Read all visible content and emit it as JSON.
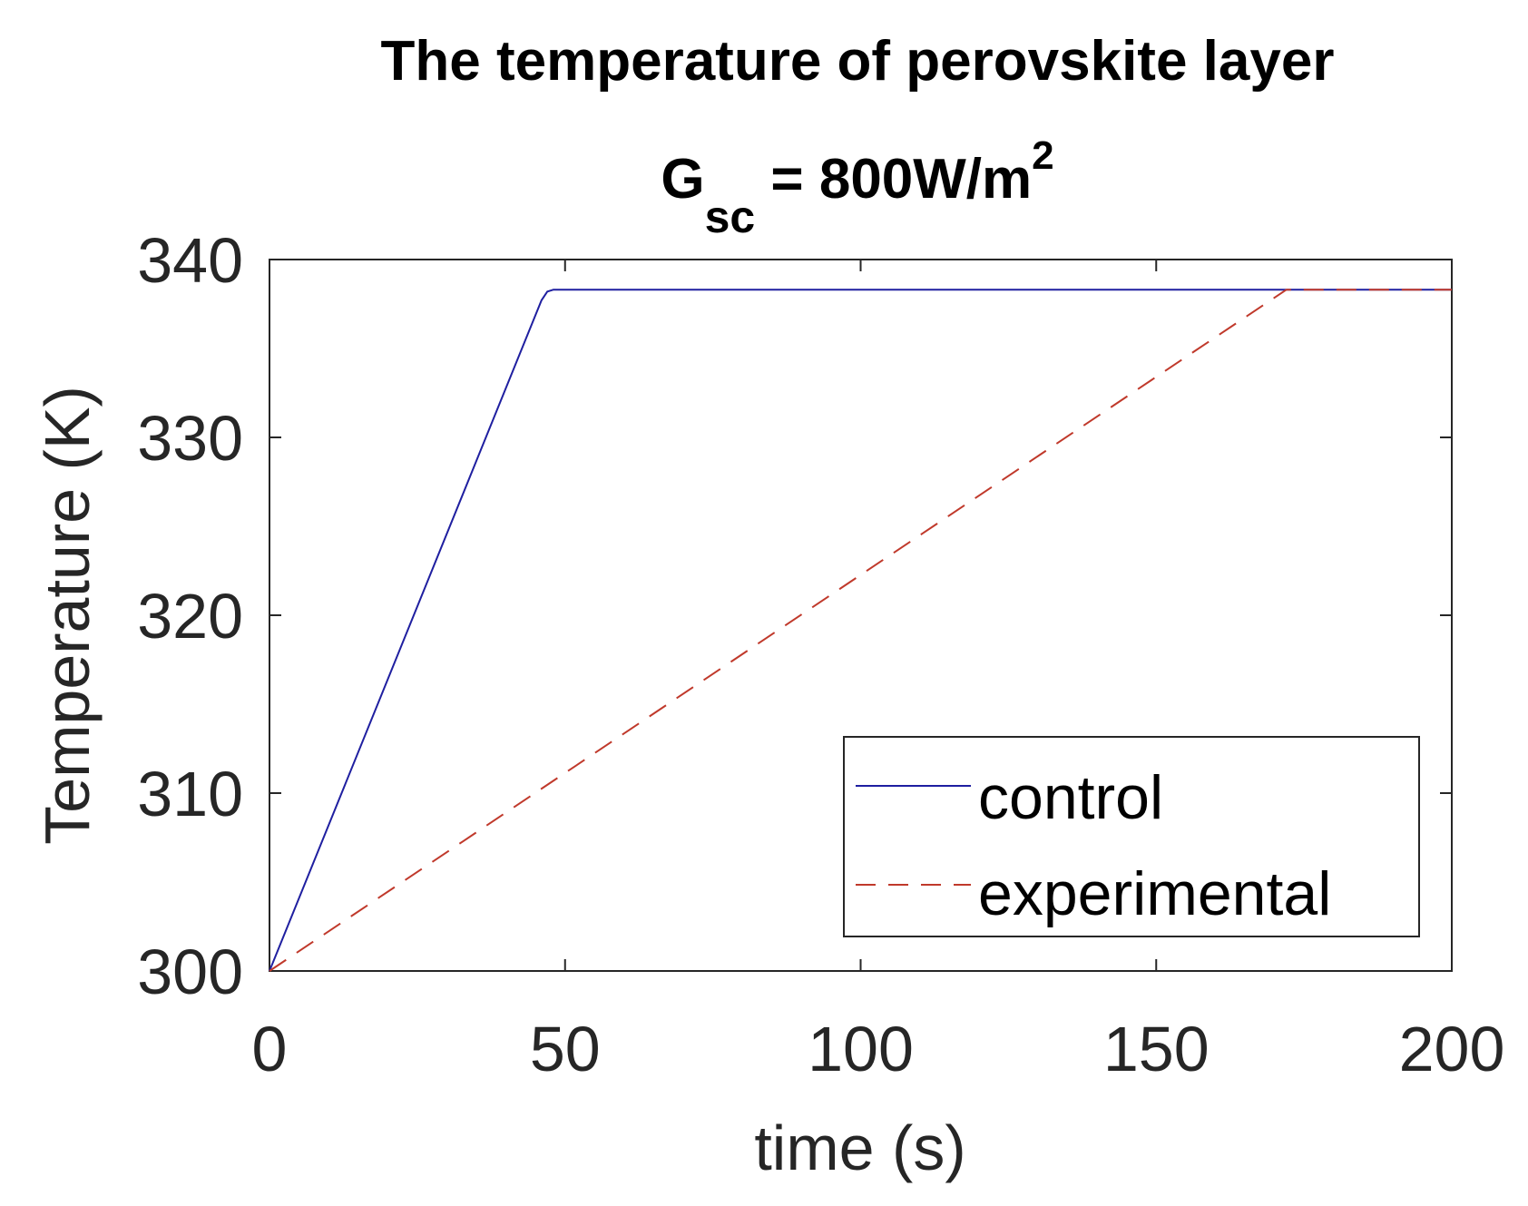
{
  "chart_data": {
    "type": "line",
    "title": "The temperature of perovskite layer",
    "subtitle": {
      "main": "G",
      "subscript": "sc",
      "rest": " = 800W/m",
      "superscript": "2"
    },
    "xlabel": "time (s)",
    "ylabel": "Temperature (K)",
    "xlim": [
      0,
      200
    ],
    "ylim": [
      300,
      340
    ],
    "xticks": [
      0,
      50,
      100,
      150,
      200
    ],
    "yticks": [
      300,
      310,
      320,
      330,
      340
    ],
    "xtick_labels": [
      "0",
      "50",
      "100",
      "150",
      "200"
    ],
    "ytick_labels": [
      "300",
      "310",
      "320",
      "330",
      "340"
    ],
    "grid": false,
    "legend_position": "bottom-right",
    "series": [
      {
        "name": "control",
        "color": "#1f1fa0",
        "style": "solid",
        "x": [
          0,
          46,
          47,
          48,
          200
        ],
        "y": [
          300,
          337.7,
          338.2,
          338.3,
          338.3
        ]
      },
      {
        "name": "experimental",
        "color": "#c0392b",
        "style": "dashed",
        "x": [
          0,
          172,
          200
        ],
        "y": [
          300,
          338.3,
          338.3
        ]
      }
    ]
  }
}
